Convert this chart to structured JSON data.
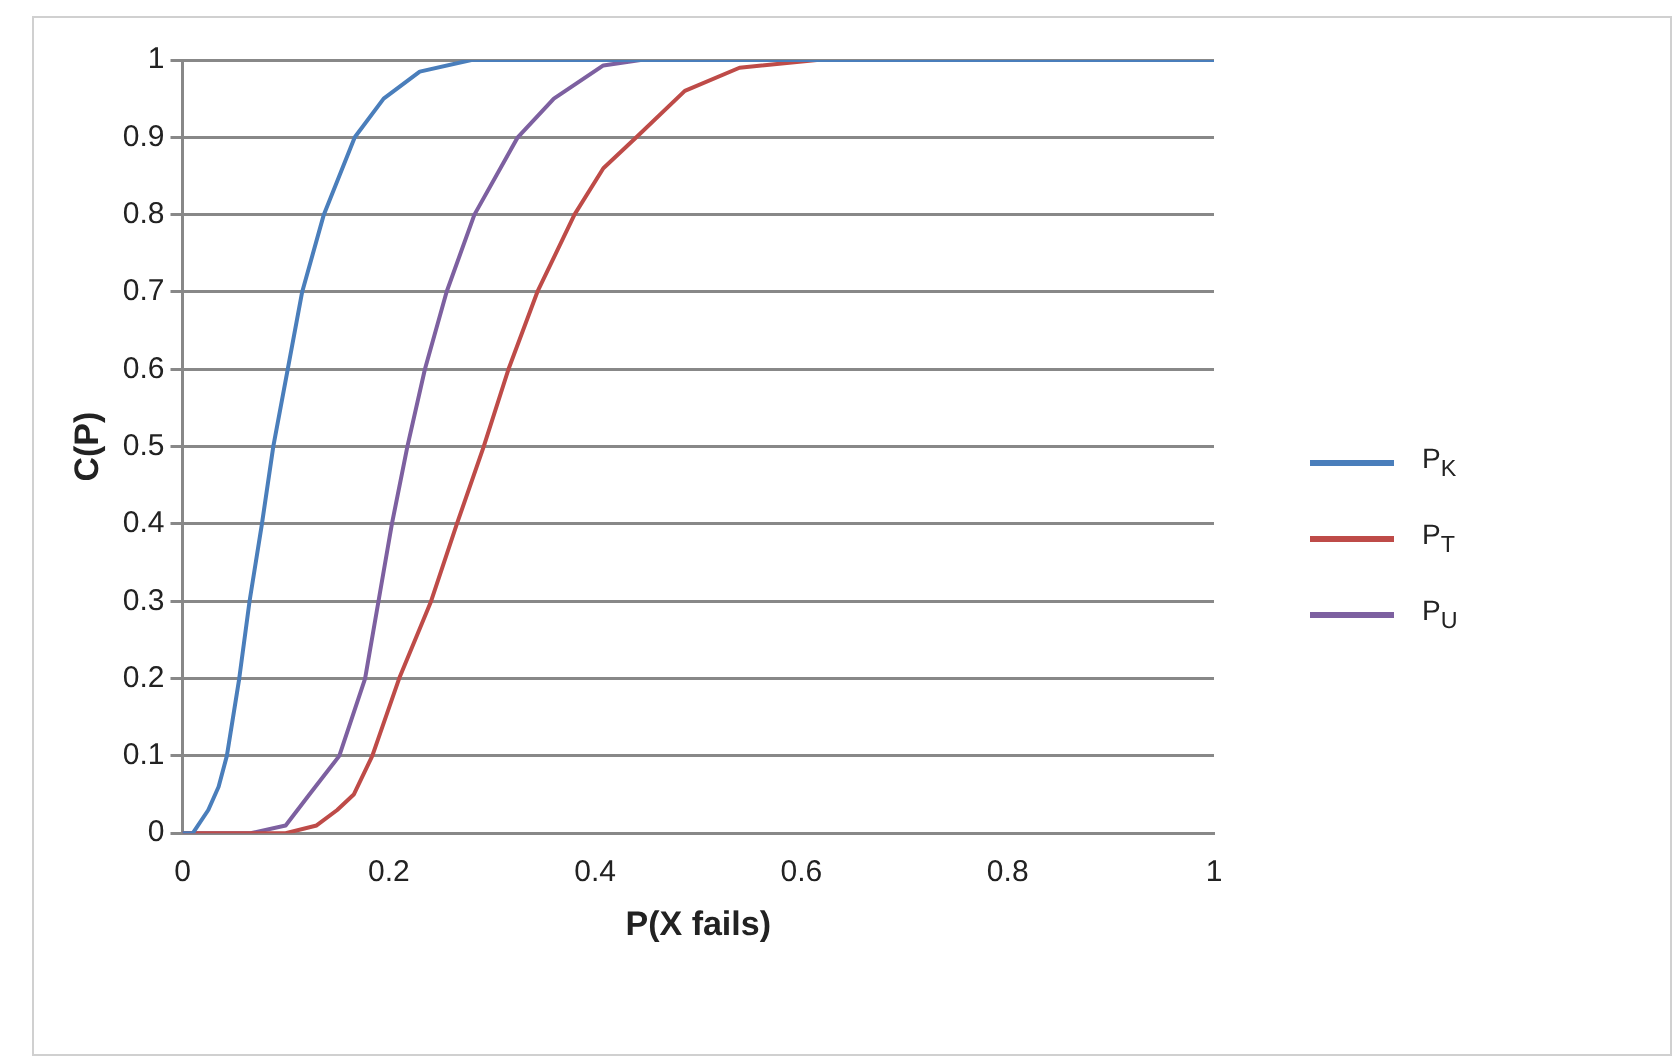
{
  "chart_data": {
    "type": "line",
    "xlabel": "P(X fails)",
    "ylabel": "C(P)",
    "xlim": [
      0,
      1
    ],
    "xticks": [
      0,
      0.2,
      0.4,
      0.6,
      0.8,
      1
    ],
    "ylim": [
      0,
      1
    ],
    "yticks": [
      0,
      0.1,
      0.2,
      0.3,
      0.4,
      0.5,
      0.6,
      0.7,
      0.8,
      0.9,
      1
    ],
    "grid": "y",
    "legend": "right",
    "marker": "none",
    "line_style": "solid",
    "series": [
      {
        "name": "P$_{K}$",
        "color": "#4a7ebb",
        "x": [
          0,
          0.01,
          0.025,
          0.035,
          0.043,
          0.055,
          0.065,
          0.077,
          0.088,
          0.102,
          0.116,
          0.137,
          0.167,
          0.195,
          0.23,
          0.28,
          0.4,
          0.6,
          0.8,
          1
        ],
        "values": [
          0,
          0,
          0.03,
          0.06,
          0.1,
          0.2,
          0.3,
          0.4,
          0.5,
          0.6,
          0.7,
          0.8,
          0.9,
          0.95,
          0.985,
          1,
          1,
          1,
          1,
          1
        ]
      },
      {
        "name": "P$_{T}$",
        "color": "#be4b48",
        "x": [
          0,
          0.1,
          0.13,
          0.15,
          0.166,
          0.184,
          0.21,
          0.241,
          0.266,
          0.292,
          0.316,
          0.344,
          0.38,
          0.408,
          0.44,
          0.487,
          0.54,
          0.615,
          0.8,
          1
        ],
        "values": [
          0,
          0,
          0.01,
          0.03,
          0.05,
          0.1,
          0.2,
          0.3,
          0.4,
          0.5,
          0.6,
          0.7,
          0.8,
          0.86,
          0.9,
          0.96,
          0.99,
          1,
          1,
          1
        ]
      },
      {
        "name": "P$_{U}$",
        "color": "#7d60a0",
        "x": [
          0,
          0.066,
          0.1,
          0.123,
          0.152,
          0.177,
          0.19,
          0.203,
          0.218,
          0.235,
          0.256,
          0.283,
          0.325,
          0.36,
          0.408,
          0.444,
          0.6,
          0.8,
          1
        ],
        "values": [
          0,
          0,
          0.01,
          0.05,
          0.1,
          0.2,
          0.3,
          0.4,
          0.5,
          0.6,
          0.7,
          0.8,
          0.9,
          0.95,
          0.993,
          1,
          1,
          1,
          1
        ]
      }
    ]
  }
}
